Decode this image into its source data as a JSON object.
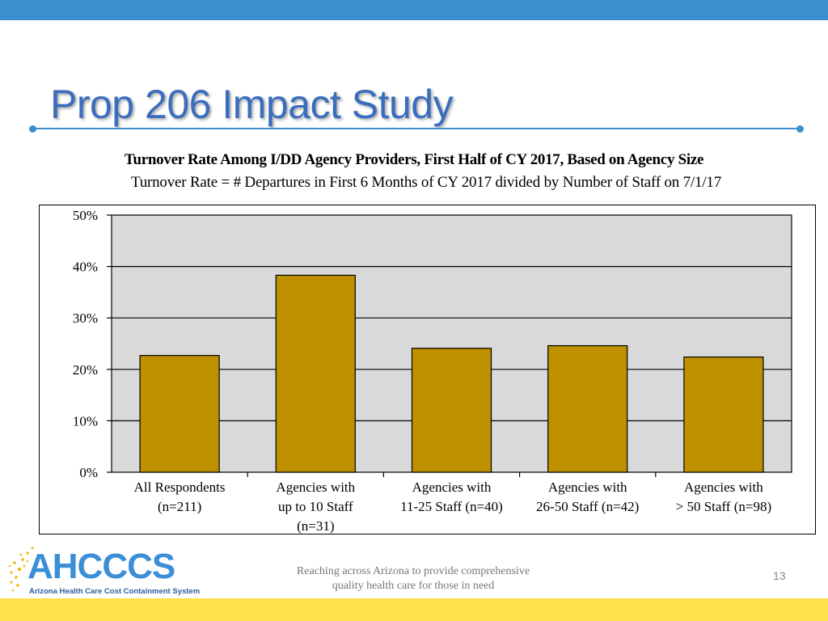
{
  "slide": {
    "title": "Prop 206 Impact Study",
    "tagline_line1": "Reaching across Arizona to provide comprehensive",
    "tagline_line2": "quality health care for those in need",
    "page_number": "13"
  },
  "logo": {
    "name": "AHCCCS",
    "subtitle": "Arizona Health Care Cost Containment System"
  },
  "colors": {
    "accent_blue": "#3b8fce",
    "bar_fill": "#bf9000",
    "plot_bg": "#d9d9d9",
    "footer_yellow": "#ffe14d"
  },
  "chart_data": {
    "type": "bar",
    "title": "Turnover Rate Among I/DD Agency Providers, First Half of CY 2017,  Based on Agency Size",
    "subtitle": "Turnover Rate = # Departures in First 6 Months of CY 2017 divided by Number of Staff on 7/1/17",
    "categories": [
      [
        "All Respondents",
        "(n=211)"
      ],
      [
        "Agencies with",
        "up to 10 Staff",
        "(n=31)"
      ],
      [
        "Agencies with",
        "11-25 Staff (n=40)"
      ],
      [
        "Agencies with",
        "26-50 Staff (n=42)"
      ],
      [
        "Agencies with",
        "> 50 Staff (n=98)"
      ]
    ],
    "values": [
      22.7,
      38.3,
      24.1,
      24.6,
      22.4
    ],
    "ylim": [
      0,
      50
    ],
    "yticks": [
      0,
      10,
      20,
      30,
      40,
      50
    ],
    "ytick_labels": [
      "0%",
      "10%",
      "20%",
      "30%",
      "40%",
      "50%"
    ],
    "grid": true,
    "xlabel": "",
    "ylabel": ""
  }
}
